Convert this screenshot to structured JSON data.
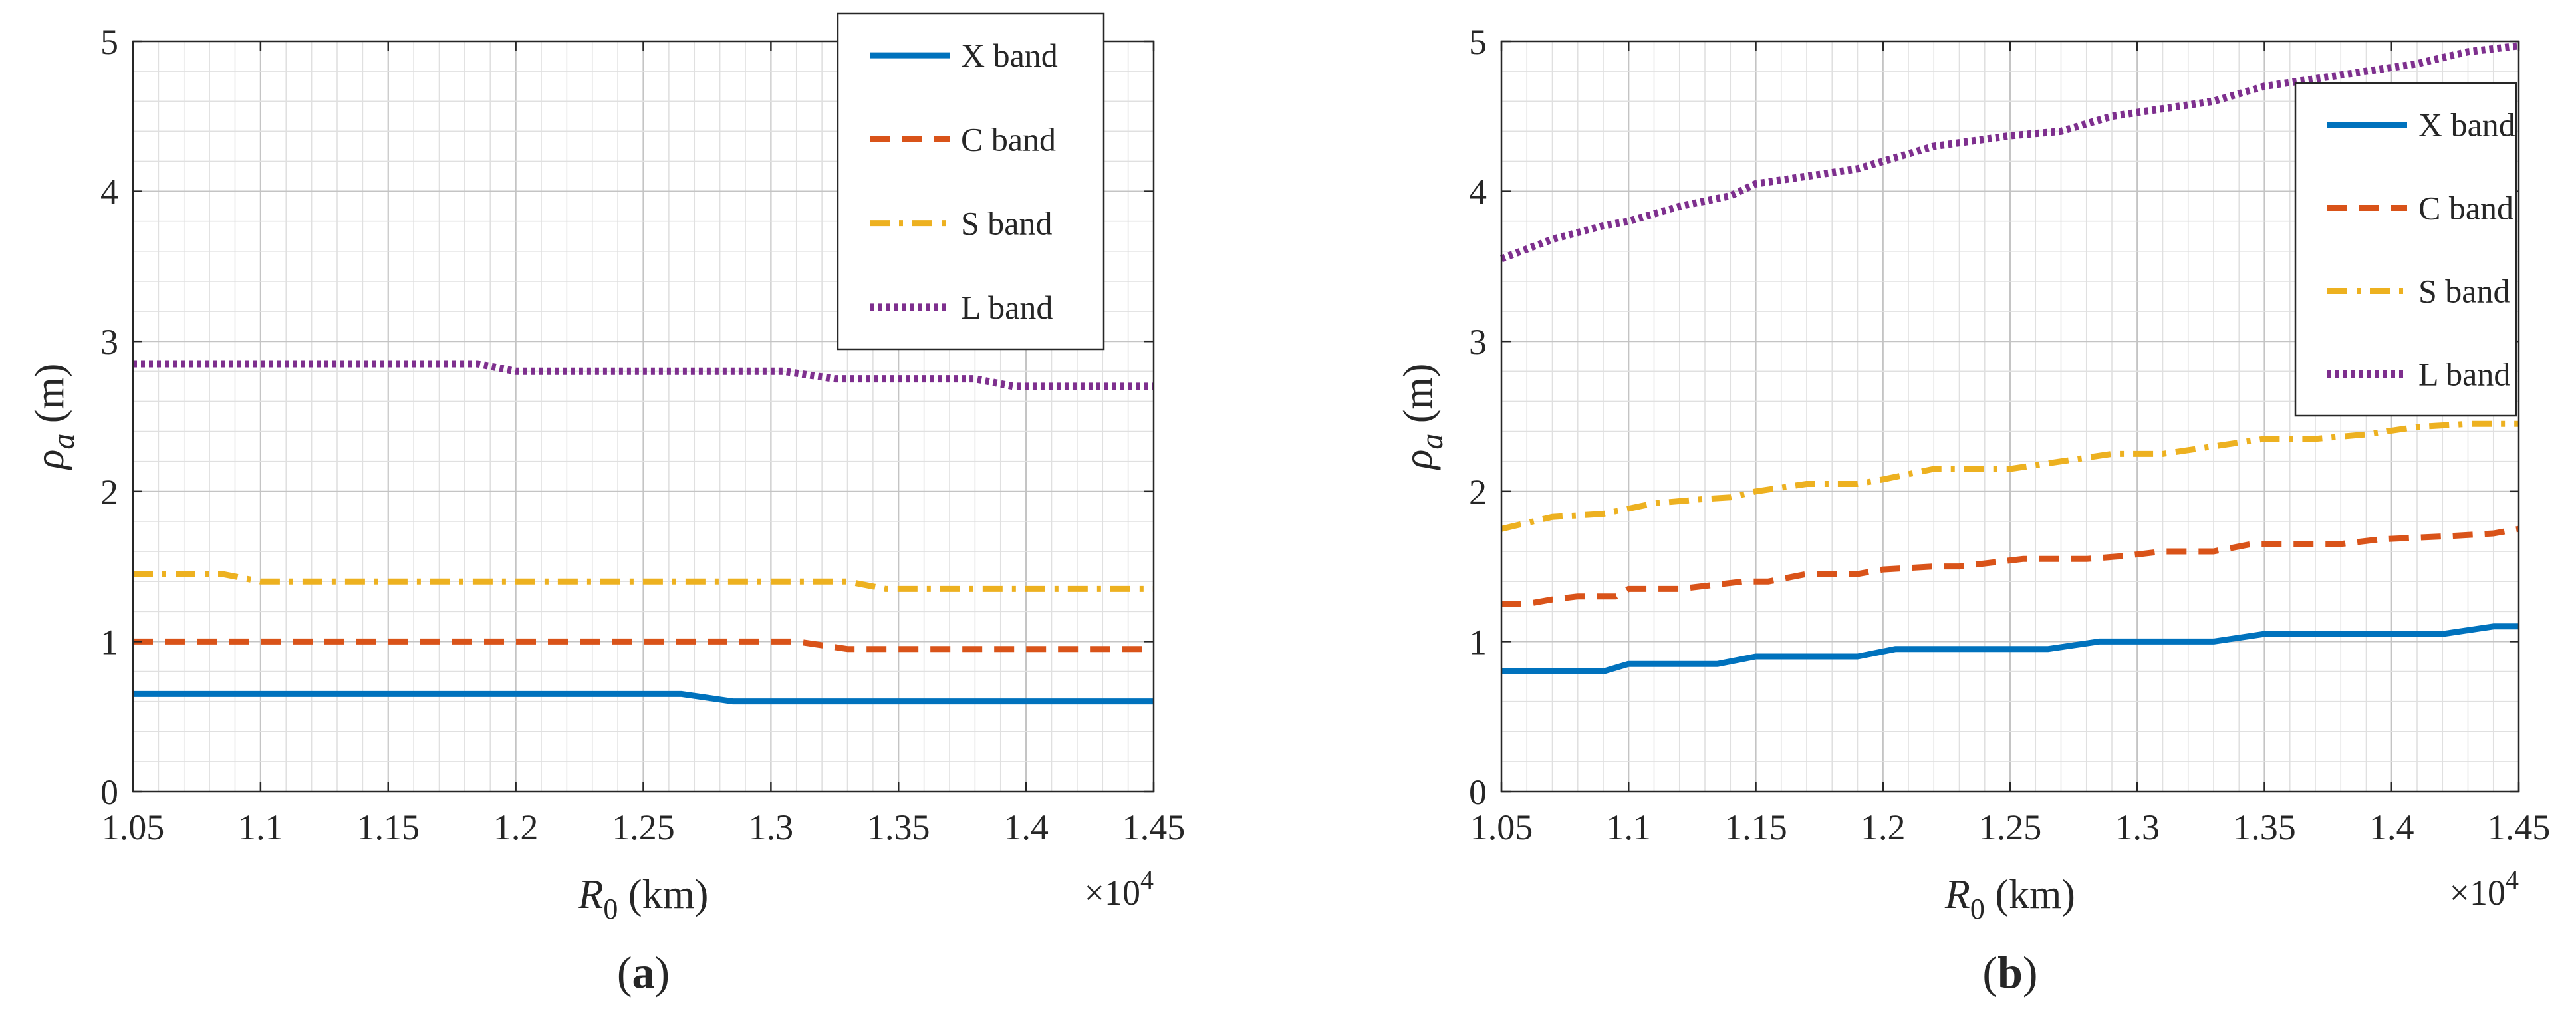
{
  "chart_data": [
    {
      "type": "line",
      "panel_label": "a",
      "xlabel": "R",
      "xlabel_subscript": "0",
      "xlabel_unit": " (km)",
      "ylabel": "ρ",
      "ylabel_subscript": "a",
      "ylabel_unit": " (m)",
      "x_multiplier": "×10",
      "x_multiplier_exp": "4",
      "xlim": [
        1.05,
        1.45
      ],
      "ylim": [
        0,
        5
      ],
      "xticks": [
        "1.05",
        "1.1",
        "1.15",
        "1.2",
        "1.25",
        "1.3",
        "1.35",
        "1.4",
        "1.45"
      ],
      "yticks": [
        "0",
        "1",
        "2",
        "3",
        "4",
        "5"
      ],
      "grid": true,
      "legend_position": "top-right",
      "series": [
        {
          "name": "X band",
          "color": "#0072BD",
          "dash": "solid",
          "x": [
            1.05,
            1.265,
            1.285,
            1.45
          ],
          "y": [
            0.65,
            0.65,
            0.6,
            0.6
          ]
        },
        {
          "name": "C band",
          "color": "#D95319",
          "dash": "dashed",
          "x": [
            1.05,
            1.31,
            1.33,
            1.45
          ],
          "y": [
            1.0,
            1.0,
            0.95,
            0.95
          ]
        },
        {
          "name": "S band",
          "color": "#EDB120",
          "dash": "dashdot",
          "x": [
            1.05,
            1.085,
            1.1,
            1.33,
            1.345,
            1.45
          ],
          "y": [
            1.45,
            1.45,
            1.4,
            1.4,
            1.35,
            1.35
          ]
        },
        {
          "name": "L band",
          "color": "#7E2F8E",
          "dash": "dotted",
          "x": [
            1.05,
            1.185,
            1.2,
            1.305,
            1.325,
            1.38,
            1.395,
            1.45
          ],
          "y": [
            2.85,
            2.85,
            2.8,
            2.8,
            2.75,
            2.75,
            2.7,
            2.7
          ]
        }
      ]
    },
    {
      "type": "line",
      "panel_label": "b",
      "xlabel": "R",
      "xlabel_subscript": "0",
      "xlabel_unit": " (km)",
      "ylabel": "ρ",
      "ylabel_subscript": "a",
      "ylabel_unit": " (m)",
      "x_multiplier": "×10",
      "x_multiplier_exp": "4",
      "xlim": [
        1.05,
        1.45
      ],
      "ylim": [
        0,
        5
      ],
      "xticks": [
        "1.05",
        "1.1",
        "1.15",
        "1.2",
        "1.25",
        "1.3",
        "1.35",
        "1.4",
        "1.45"
      ],
      "yticks": [
        "0",
        "1",
        "2",
        "3",
        "4",
        "5"
      ],
      "grid": true,
      "legend_position": "top-right",
      "series": [
        {
          "name": "X band",
          "color": "#0072BD",
          "dash": "solid",
          "x": [
            1.05,
            1.09,
            1.1,
            1.135,
            1.15,
            1.19,
            1.205,
            1.265,
            1.285,
            1.33,
            1.35,
            1.42,
            1.44,
            1.45
          ],
          "y": [
            0.8,
            0.8,
            0.85,
            0.85,
            0.9,
            0.9,
            0.95,
            0.95,
            1.0,
            1.0,
            1.05,
            1.05,
            1.1,
            1.1
          ]
        },
        {
          "name": "C band",
          "color": "#D95319",
          "dash": "dashed",
          "x": [
            1.05,
            1.06,
            1.07,
            1.08,
            1.095,
            1.1,
            1.12,
            1.13,
            1.145,
            1.155,
            1.17,
            1.19,
            1.2,
            1.22,
            1.23,
            1.245,
            1.255,
            1.27,
            1.28,
            1.295,
            1.31,
            1.33,
            1.345,
            1.37,
            1.38,
            1.395,
            1.42,
            1.44,
            1.45
          ],
          "y": [
            1.25,
            1.25,
            1.28,
            1.3,
            1.3,
            1.35,
            1.35,
            1.37,
            1.4,
            1.4,
            1.45,
            1.45,
            1.48,
            1.5,
            1.5,
            1.53,
            1.55,
            1.55,
            1.55,
            1.57,
            1.6,
            1.6,
            1.65,
            1.65,
            1.65,
            1.68,
            1.7,
            1.72,
            1.75
          ]
        },
        {
          "name": "S band",
          "color": "#EDB120",
          "dash": "dashdot",
          "x": [
            1.05,
            1.07,
            1.09,
            1.11,
            1.13,
            1.14,
            1.15,
            1.17,
            1.19,
            1.2,
            1.22,
            1.25,
            1.27,
            1.29,
            1.31,
            1.33,
            1.35,
            1.37,
            1.39,
            1.41,
            1.43,
            1.45
          ],
          "y": [
            1.75,
            1.83,
            1.85,
            1.92,
            1.95,
            1.96,
            2.0,
            2.05,
            2.05,
            2.08,
            2.15,
            2.15,
            2.2,
            2.25,
            2.25,
            2.3,
            2.35,
            2.35,
            2.38,
            2.43,
            2.45,
            2.45
          ]
        },
        {
          "name": "L band",
          "color": "#7E2F8E",
          "dash": "dotted",
          "x": [
            1.05,
            1.07,
            1.09,
            1.1,
            1.12,
            1.14,
            1.15,
            1.17,
            1.19,
            1.2,
            1.22,
            1.25,
            1.27,
            1.29,
            1.31,
            1.33,
            1.35,
            1.37,
            1.39,
            1.41,
            1.43,
            1.45
          ],
          "y": [
            3.55,
            3.68,
            3.77,
            3.8,
            3.9,
            3.97,
            4.05,
            4.1,
            4.15,
            4.2,
            4.3,
            4.37,
            4.4,
            4.5,
            4.55,
            4.6,
            4.7,
            4.75,
            4.8,
            4.85,
            4.93,
            4.97
          ]
        }
      ]
    }
  ]
}
